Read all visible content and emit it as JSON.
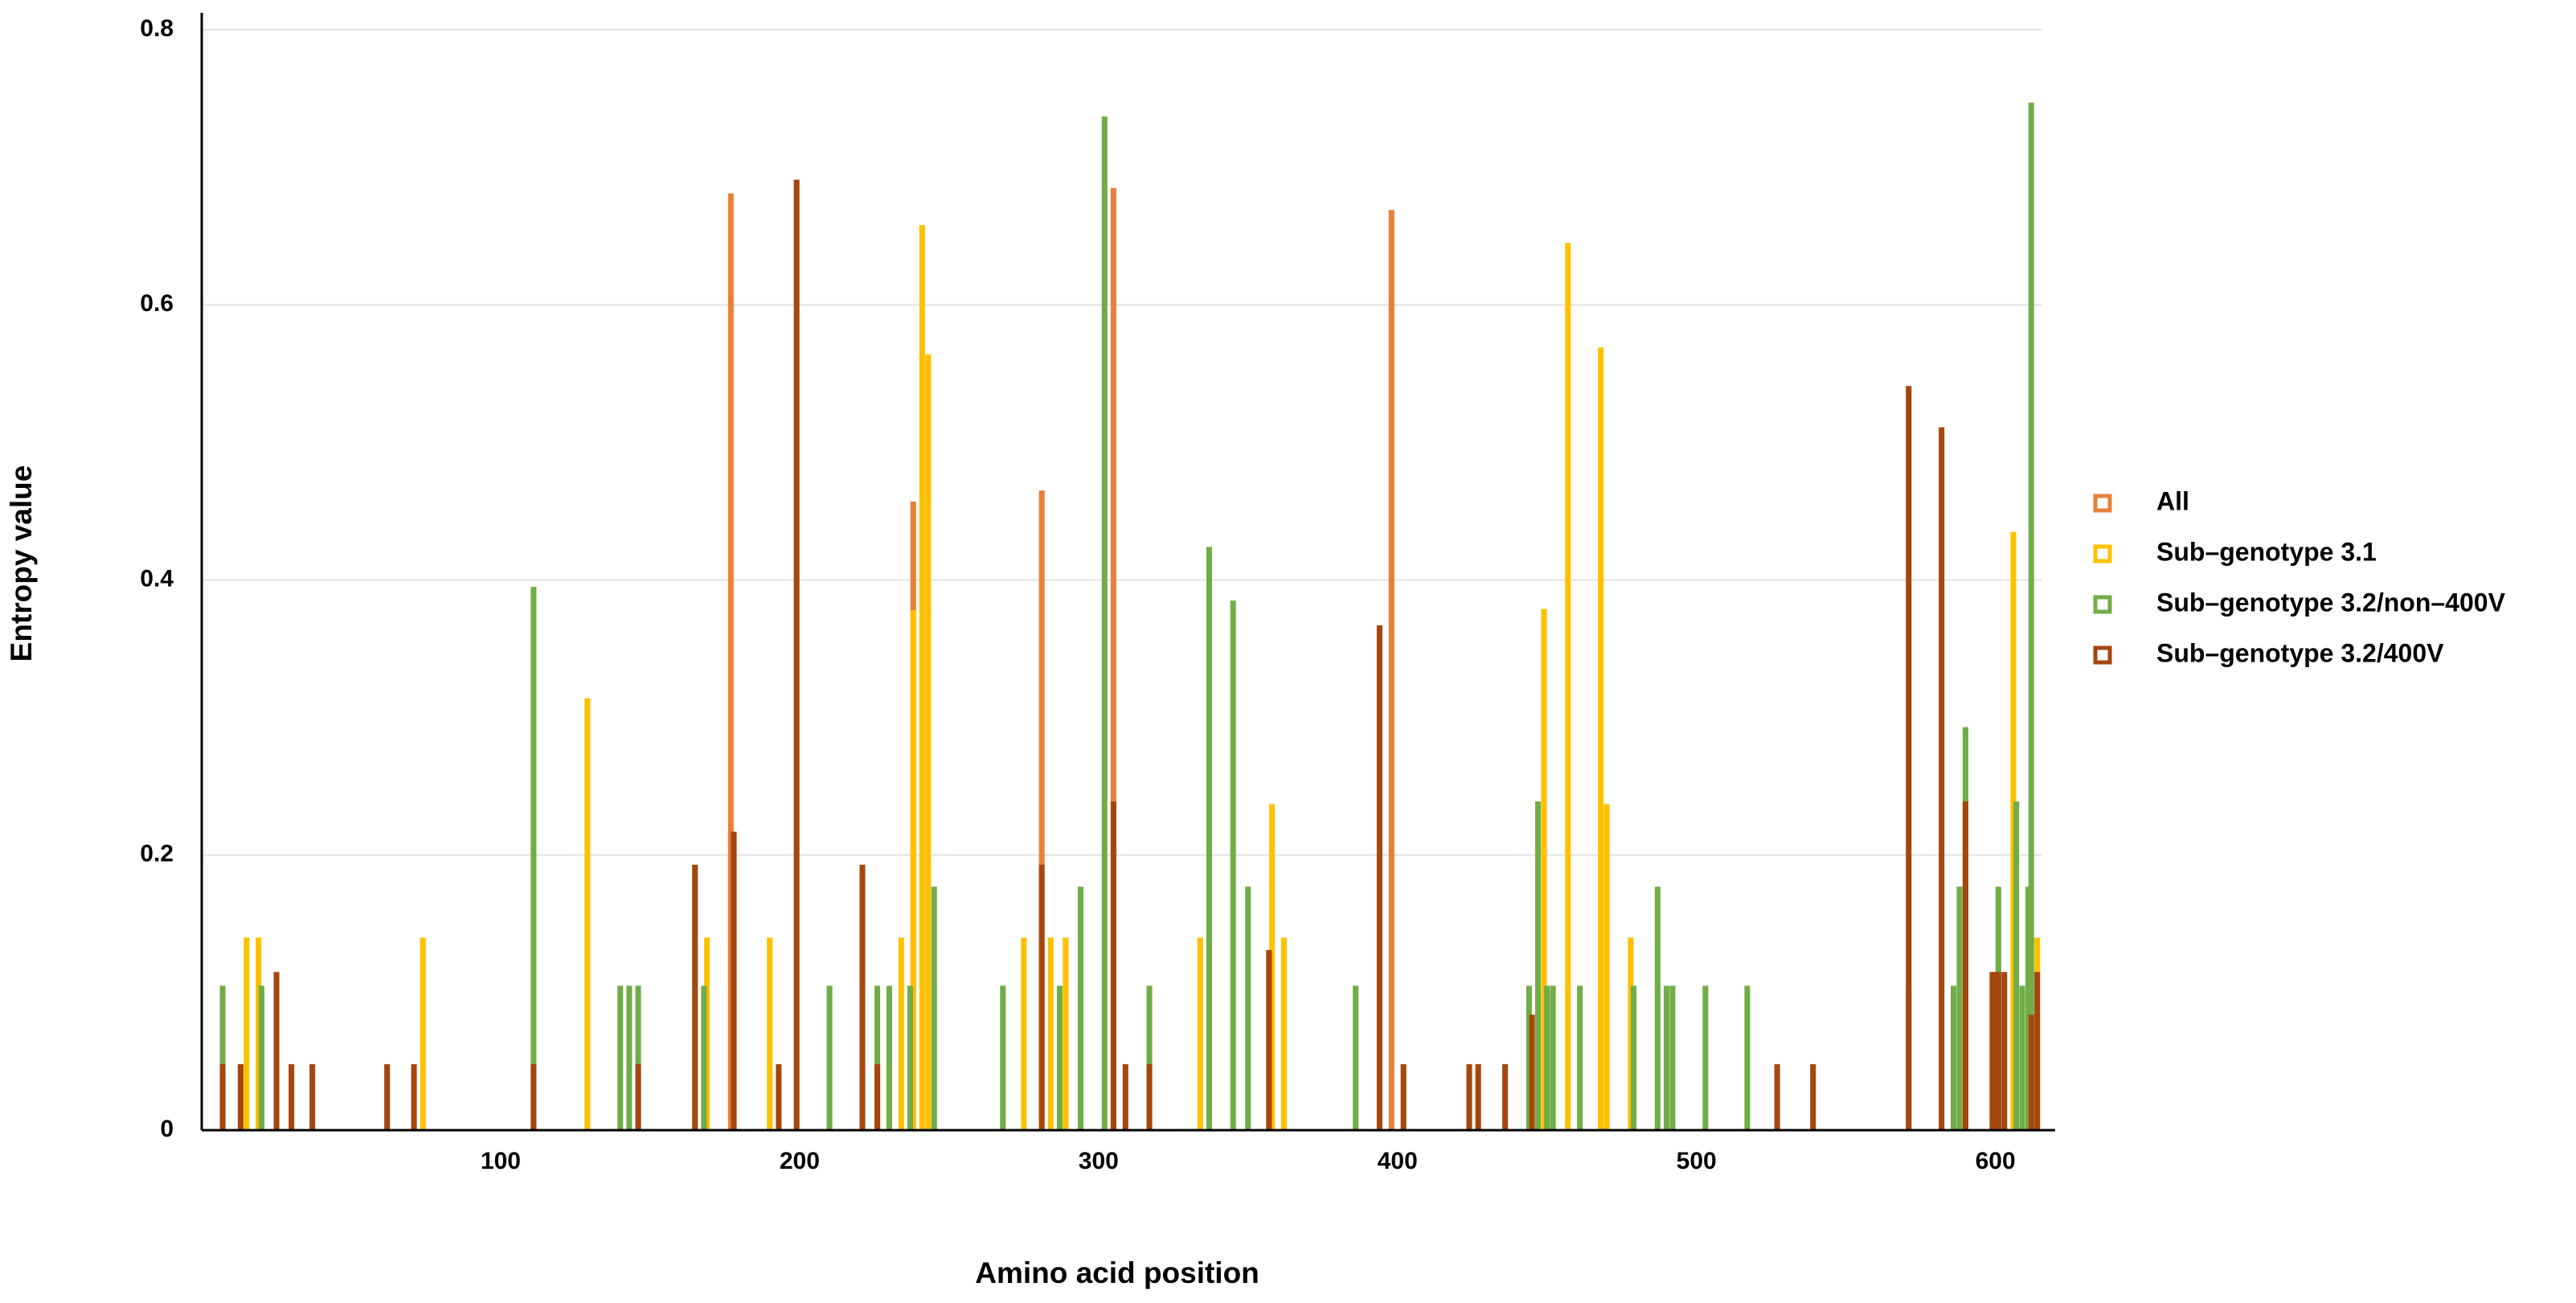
{
  "chart_data": {
    "type": "bar",
    "x_label": "Amino acid position",
    "y_label": "Entropy value",
    "xlim": [
      0,
      620
    ],
    "ylim": [
      0,
      0.8
    ],
    "xticks": [
      100,
      200,
      300,
      400,
      500,
      600
    ],
    "yticks": [
      0,
      0.2,
      0.4,
      0.6,
      0.8
    ],
    "grid": true,
    "legend": "right",
    "series": [
      {
        "name": "All",
        "color": "#E8803A",
        "x": [
          177,
          238,
          281,
          305,
          398
        ],
        "values": [
          0.681,
          0.457,
          0.465,
          0.685,
          0.669
        ]
      },
      {
        "name": "Sub–genotype 3.1",
        "color": "#FFC000",
        "x": [
          15,
          19,
          74,
          129,
          169,
          190,
          234,
          238,
          241,
          243,
          275,
          284,
          289,
          334,
          358,
          362,
          449,
          457,
          468,
          470,
          478,
          606,
          614
        ],
        "values": [
          0.14,
          0.14,
          0.14,
          0.314,
          0.14,
          0.14,
          0.14,
          0.378,
          0.658,
          0.564,
          0.14,
          0.14,
          0.14,
          0.14,
          0.237,
          0.14,
          0.379,
          0.645,
          0.569,
          0.237,
          0.14,
          0.435,
          0.14
        ]
      },
      {
        "name": "Sub–genotype 3.2/non–400V",
        "color": "#70AD47",
        "x": [
          7,
          20,
          111,
          140,
          143,
          146,
          168,
          210,
          226,
          230,
          237,
          245,
          268,
          287,
          294,
          302,
          317,
          337,
          345,
          350,
          386,
          444,
          447,
          450,
          452,
          461,
          479,
          487,
          490,
          492,
          503,
          517,
          571,
          586,
          588,
          590,
          601,
          607,
          609,
          611,
          612
        ],
        "values": [
          0.105,
          0.105,
          0.395,
          0.105,
          0.105,
          0.105,
          0.105,
          0.105,
          0.105,
          0.105,
          0.105,
          0.177,
          0.105,
          0.105,
          0.177,
          0.737,
          0.105,
          0.424,
          0.385,
          0.177,
          0.105,
          0.105,
          0.239,
          0.105,
          0.105,
          0.105,
          0.105,
          0.177,
          0.105,
          0.105,
          0.105,
          0.105,
          0.105,
          0.105,
          0.177,
          0.293,
          0.177,
          0.239,
          0.105,
          0.177,
          0.747
        ]
      },
      {
        "name": "Sub–genotype 3.2/400V",
        "color": "#A5460F",
        "x": [
          7,
          13,
          25,
          30,
          37,
          62,
          71,
          111,
          146,
          165,
          178,
          193,
          199,
          221,
          226,
          281,
          305,
          309,
          317,
          357,
          394,
          402,
          424,
          427,
          436,
          445,
          527,
          539,
          571,
          582,
          590,
          599,
          600,
          601,
          603,
          612,
          614
        ],
        "values": [
          0.048,
          0.048,
          0.115,
          0.048,
          0.048,
          0.048,
          0.048,
          0.048,
          0.048,
          0.193,
          0.217,
          0.048,
          0.691,
          0.193,
          0.048,
          0.193,
          0.239,
          0.048,
          0.048,
          0.131,
          0.367,
          0.048,
          0.048,
          0.048,
          0.048,
          0.084,
          0.048,
          0.048,
          0.541,
          0.511,
          0.239,
          0.115,
          0.115,
          0.115,
          0.115,
          0.084,
          0.115
        ]
      }
    ]
  }
}
